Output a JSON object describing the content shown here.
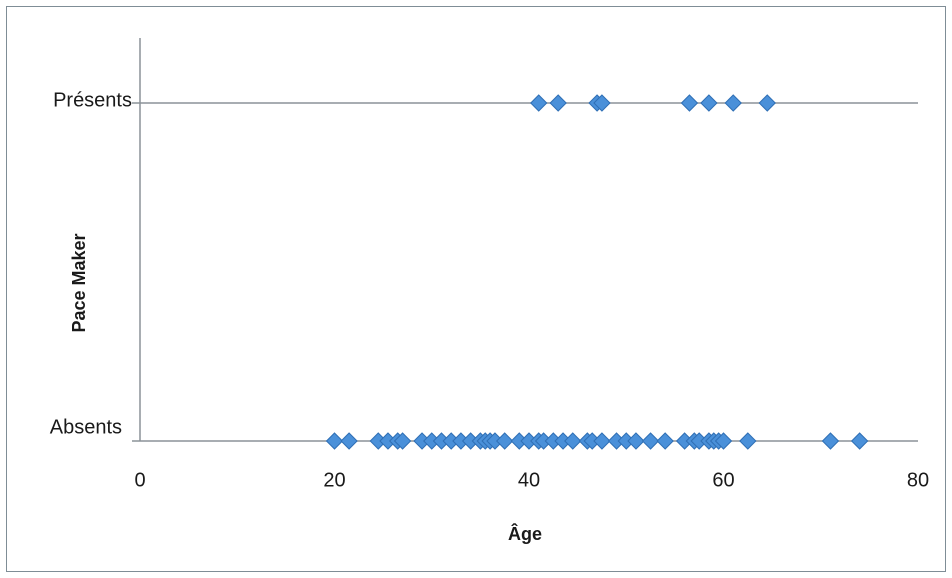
{
  "chart_data": {
    "type": "scatter",
    "title": "",
    "xlabel": "Âge",
    "ylabel": "Pace Maker",
    "xlim": [
      0,
      80
    ],
    "xticks": [
      "0",
      "20",
      "40",
      "60",
      "80"
    ],
    "categories": [
      "Absents",
      "Présents"
    ],
    "grid": false,
    "marker_color": "#4a90d9",
    "marker_edge_color": "#2f6fb5",
    "series": [
      {
        "category": "Présents",
        "x": [
          41,
          43,
          47,
          47.5,
          56.5,
          58.5,
          61,
          64.5
        ]
      },
      {
        "category": "Absents",
        "x": [
          20,
          21.5,
          24.5,
          25.5,
          26.5,
          27,
          29,
          30,
          31,
          32,
          33,
          34,
          35,
          35.5,
          36,
          36.5,
          37.5,
          39,
          40,
          41,
          41.5,
          42.5,
          43.5,
          44.5,
          46,
          46.5,
          47.5,
          49,
          50,
          51,
          52.5,
          54,
          56,
          57,
          57.5,
          58.5,
          59,
          59.5,
          60,
          62.5,
          71,
          74
        ]
      }
    ]
  }
}
